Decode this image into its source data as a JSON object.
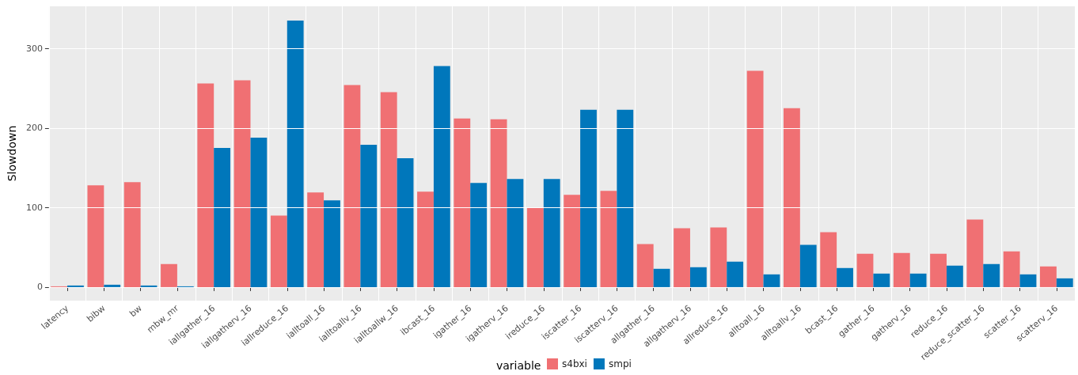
{
  "chart_data": {
    "type": "bar",
    "ylabel": "Slowdown",
    "legend_title": "variable",
    "categories": [
      "latency",
      "bibw",
      "bw",
      "mbw_mr",
      "iallgather_16",
      "iallgatherv_16",
      "iallreduce_16",
      "ialltoall_16",
      "ialltoallv_16",
      "ialltoallw_16",
      "ibcast_16",
      "igather_16",
      "igatherv_16",
      "ireduce_16",
      "iscatter_16",
      "iscatterv_16",
      "allgather_16",
      "allgatherv_16",
      "allreduce_16",
      "alltoall_16",
      "alltoallv_16",
      "bcast_16",
      "gather_16",
      "gatherv_16",
      "reduce_16",
      "reduce_scatter_16",
      "scatter_16",
      "scatterv_16"
    ],
    "series": [
      {
        "name": "s4bxi",
        "color": "#f07073",
        "values": [
          1,
          128,
          132,
          29,
          256,
          260,
          90,
          119,
          254,
          245,
          120,
          212,
          211,
          100,
          116,
          121,
          54,
          74,
          75,
          272,
          225,
          69,
          42,
          43,
          42,
          85,
          45,
          26
        ]
      },
      {
        "name": "smpi",
        "color": "#0077bb",
        "values": [
          2,
          3,
          2,
          1,
          175,
          188,
          335,
          109,
          179,
          162,
          278,
          131,
          136,
          136,
          223,
          223,
          23,
          25,
          32,
          16,
          53,
          24,
          17,
          17,
          27,
          29,
          16,
          11
        ]
      }
    ],
    "ylim": [
      -17,
      353
    ],
    "yticks": [
      0,
      100,
      200,
      300
    ],
    "grid": true,
    "legend": "bottom"
  }
}
